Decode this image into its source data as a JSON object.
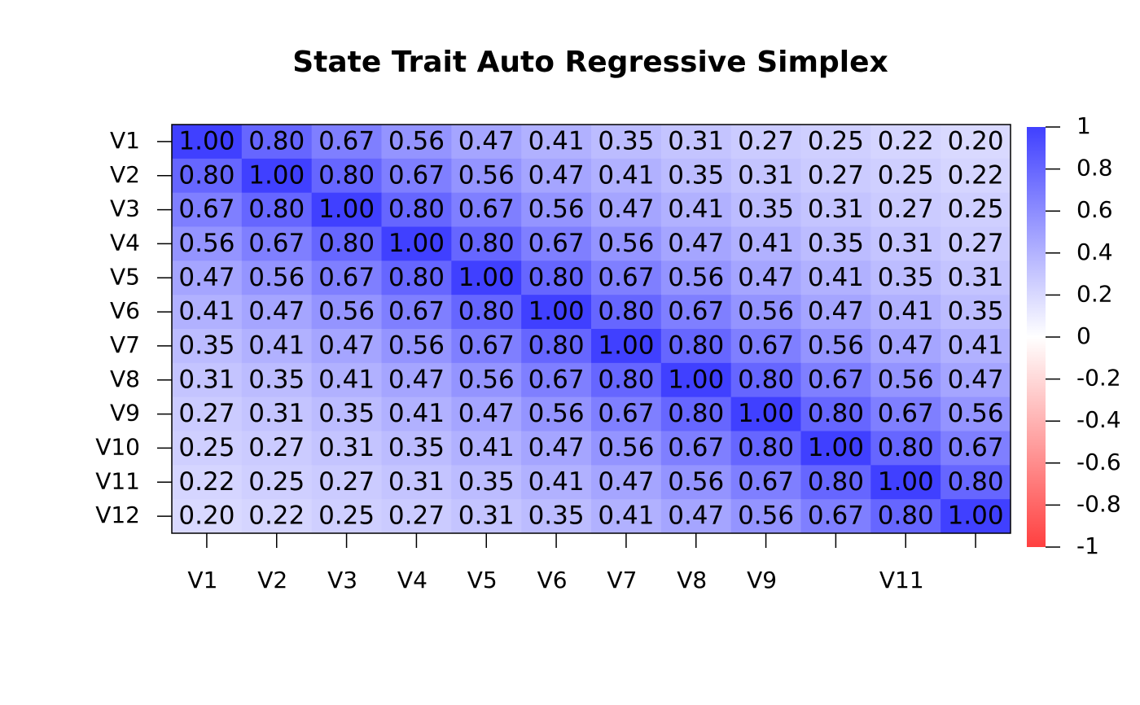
{
  "chart_data": {
    "type": "heatmap",
    "title": "State Trait Auto Regressive Simplex",
    "categories": [
      "V1",
      "V2",
      "V3",
      "V4",
      "V5",
      "V6",
      "V7",
      "V8",
      "V9",
      null,
      "V11",
      null
    ],
    "rows": [
      "V1",
      "V2",
      "V3",
      "V4",
      "V5",
      "V6",
      "V7",
      "V8",
      "V9",
      "V10",
      "V11",
      "V12"
    ],
    "values": [
      [
        1,
        0.8,
        0.67,
        0.56,
        0.47,
        0.41,
        0.35,
        0.31,
        0.27,
        0.25,
        0.22,
        0.2
      ],
      [
        0.8,
        1,
        0.8,
        0.67,
        0.56,
        0.47,
        0.41,
        0.35,
        0.31,
        0.27,
        0.25,
        0.22
      ],
      [
        0.67,
        0.8,
        1,
        0.8,
        0.67,
        0.56,
        0.47,
        0.41,
        0.35,
        0.31,
        0.27,
        0.25
      ],
      [
        0.56,
        0.67,
        0.8,
        1,
        0.8,
        0.67,
        0.56,
        0.47,
        0.41,
        0.35,
        0.31,
        0.27
      ],
      [
        0.47,
        0.56,
        0.67,
        0.8,
        1,
        0.8,
        0.67,
        0.56,
        0.47,
        0.41,
        0.35,
        0.31
      ],
      [
        0.41,
        0.47,
        0.56,
        0.67,
        0.8,
        1,
        0.8,
        0.67,
        0.56,
        0.47,
        0.41,
        0.35
      ],
      [
        0.35,
        0.41,
        0.47,
        0.56,
        0.67,
        0.8,
        1,
        0.8,
        0.67,
        0.56,
        0.47,
        0.41
      ],
      [
        0.31,
        0.35,
        0.41,
        0.47,
        0.56,
        0.67,
        0.8,
        1,
        0.8,
        0.67,
        0.56,
        0.47
      ],
      [
        0.27,
        0.31,
        0.35,
        0.41,
        0.47,
        0.56,
        0.67,
        0.8,
        1,
        0.8,
        0.67,
        0.56
      ],
      [
        0.25,
        0.27,
        0.31,
        0.35,
        0.41,
        0.47,
        0.56,
        0.67,
        0.8,
        1,
        0.8,
        0.67
      ],
      [
        0.22,
        0.25,
        0.27,
        0.31,
        0.35,
        0.41,
        0.47,
        0.56,
        0.67,
        0.8,
        1,
        0.8
      ],
      [
        0.2,
        0.22,
        0.25,
        0.27,
        0.31,
        0.35,
        0.41,
        0.47,
        0.56,
        0.67,
        0.8,
        1
      ]
    ],
    "value_labels": [
      [
        "1.00",
        "0.80",
        "0.67",
        "0.56",
        "0.47",
        "0.41",
        "0.35",
        "0.31",
        "0.27",
        "0.25",
        "0.22",
        "0.20"
      ],
      [
        "0.80",
        "1.00",
        "0.80",
        "0.67",
        "0.56",
        "0.47",
        "0.41",
        "0.35",
        "0.31",
        "0.27",
        "0.25",
        "0.22"
      ],
      [
        "0.67",
        "0.80",
        "1.00",
        "0.80",
        "0.67",
        "0.56",
        "0.47",
        "0.41",
        "0.35",
        "0.31",
        "0.27",
        "0.25"
      ],
      [
        "0.56",
        "0.67",
        "0.80",
        "1.00",
        "0.80",
        "0.67",
        "0.56",
        "0.47",
        "0.41",
        "0.35",
        "0.31",
        "0.27"
      ],
      [
        "0.47",
        "0.56",
        "0.67",
        "0.80",
        "1.00",
        "0.80",
        "0.67",
        "0.56",
        "0.47",
        "0.41",
        "0.35",
        "0.31"
      ],
      [
        "0.41",
        "0.47",
        "0.56",
        "0.67",
        "0.80",
        "1.00",
        "0.80",
        "0.67",
        "0.56",
        "0.47",
        "0.41",
        "0.35"
      ],
      [
        "0.35",
        "0.41",
        "0.47",
        "0.56",
        "0.67",
        "0.80",
        "1.00",
        "0.80",
        "0.67",
        "0.56",
        "0.47",
        "0.41"
      ],
      [
        "0.31",
        "0.35",
        "0.41",
        "0.47",
        "0.56",
        "0.67",
        "0.80",
        "1.00",
        "0.80",
        "0.67",
        "0.56",
        "0.47"
      ],
      [
        "0.27",
        "0.31",
        "0.35",
        "0.41",
        "0.47",
        "0.56",
        "0.67",
        "0.80",
        "1.00",
        "0.80",
        "0.67",
        "0.56"
      ],
      [
        "0.25",
        "0.27",
        "0.31",
        "0.35",
        "0.41",
        "0.47",
        "0.56",
        "0.67",
        "0.80",
        "1.00",
        "0.80",
        "0.67"
      ],
      [
        "0.22",
        "0.25",
        "0.27",
        "0.31",
        "0.35",
        "0.41",
        "0.47",
        "0.56",
        "0.67",
        "0.80",
        "1.00",
        "0.80"
      ],
      [
        "0.20",
        "0.22",
        "0.25",
        "0.27",
        "0.31",
        "0.35",
        "0.41",
        "0.47",
        "0.56",
        "0.67",
        "0.80",
        "1.00"
      ]
    ],
    "color_scale": [
      "#ff4040",
      "#ffffff",
      "#4040ff"
    ],
    "zlim": [
      -1,
      1
    ],
    "zticks": [
      1,
      0.8,
      0.6,
      0.4,
      0.2,
      0,
      -0.2,
      -0.4,
      -0.6,
      -0.8,
      -1
    ]
  }
}
